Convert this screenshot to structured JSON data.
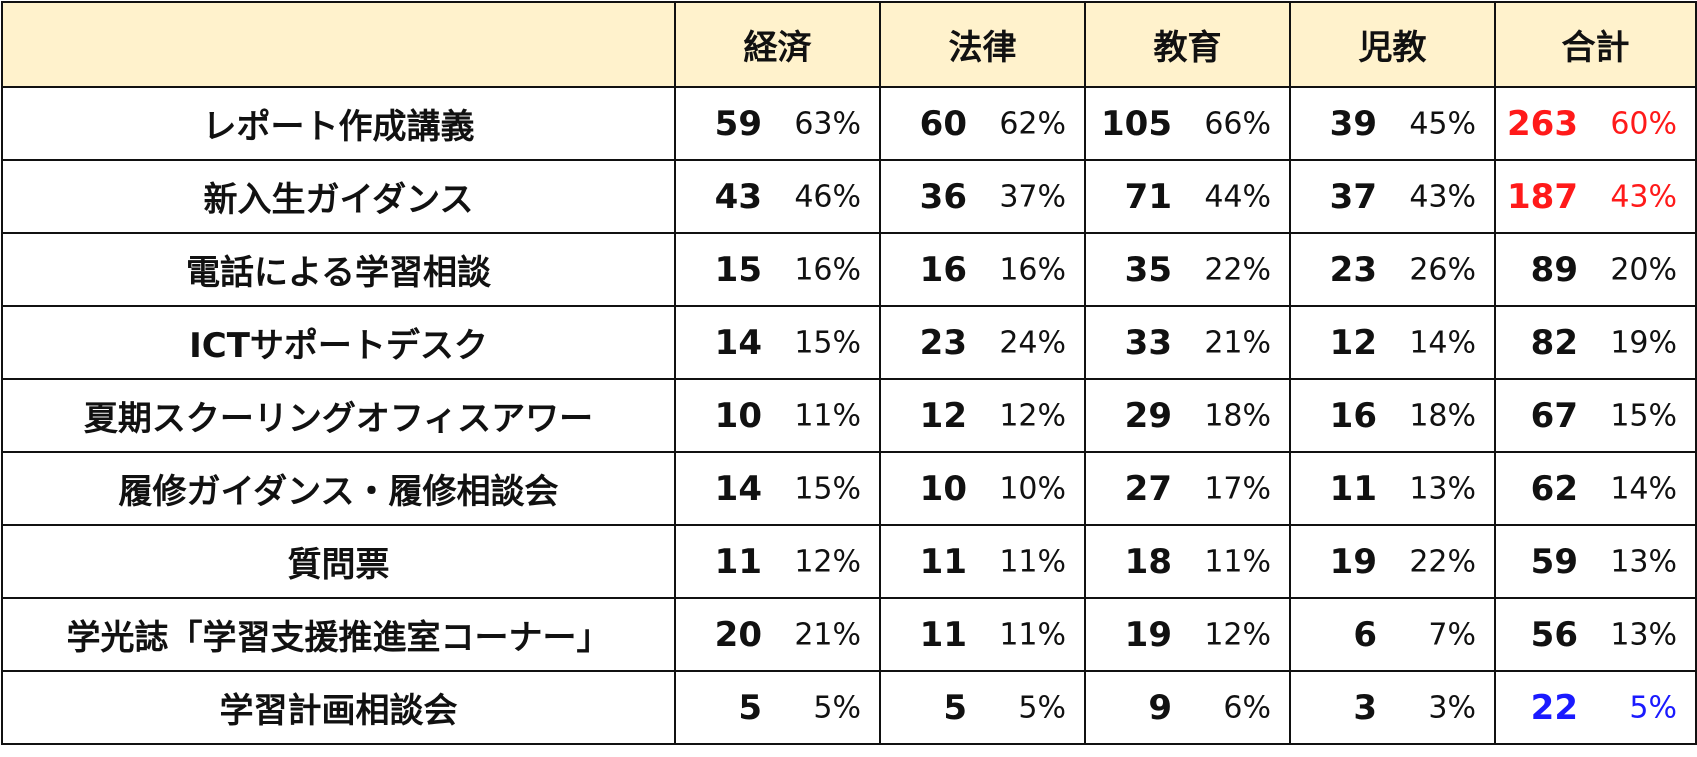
{
  "chart_data": {
    "type": "table",
    "corner": "",
    "columns": [
      "経済",
      "法律",
      "教育",
      "児教",
      "合計"
    ],
    "rows": [
      {
        "label": "レポート作成講義",
        "cells": [
          {
            "count": "59",
            "pct": "63%"
          },
          {
            "count": "60",
            "pct": "62%"
          },
          {
            "count": "105",
            "pct": "66%"
          },
          {
            "count": "39",
            "pct": "45%"
          },
          {
            "count": "263",
            "pct": "60%",
            "color": "#ff1a1a"
          }
        ]
      },
      {
        "label": "新入生ガイダンス",
        "cells": [
          {
            "count": "43",
            "pct": "46%"
          },
          {
            "count": "36",
            "pct": "37%"
          },
          {
            "count": "71",
            "pct": "44%"
          },
          {
            "count": "37",
            "pct": "43%"
          },
          {
            "count": "187",
            "pct": "43%",
            "color": "#ff1a1a"
          }
        ]
      },
      {
        "label": "電話による学習相談",
        "cells": [
          {
            "count": "15",
            "pct": "16%"
          },
          {
            "count": "16",
            "pct": "16%"
          },
          {
            "count": "35",
            "pct": "22%"
          },
          {
            "count": "23",
            "pct": "26%"
          },
          {
            "count": "89",
            "pct": "20%"
          }
        ]
      },
      {
        "label": "ICTサポートデスク",
        "cells": [
          {
            "count": "14",
            "pct": "15%"
          },
          {
            "count": "23",
            "pct": "24%"
          },
          {
            "count": "33",
            "pct": "21%"
          },
          {
            "count": "12",
            "pct": "14%"
          },
          {
            "count": "82",
            "pct": "19%"
          }
        ]
      },
      {
        "label": "夏期スクーリングオフィスアワー",
        "cells": [
          {
            "count": "10",
            "pct": "11%"
          },
          {
            "count": "12",
            "pct": "12%"
          },
          {
            "count": "29",
            "pct": "18%"
          },
          {
            "count": "16",
            "pct": "18%"
          },
          {
            "count": "67",
            "pct": "15%"
          }
        ]
      },
      {
        "label": "履修ガイダンス・履修相談会",
        "cells": [
          {
            "count": "14",
            "pct": "15%"
          },
          {
            "count": "10",
            "pct": "10%"
          },
          {
            "count": "27",
            "pct": "17%"
          },
          {
            "count": "11",
            "pct": "13%"
          },
          {
            "count": "62",
            "pct": "14%"
          }
        ]
      },
      {
        "label": "質問票",
        "cells": [
          {
            "count": "11",
            "pct": "12%"
          },
          {
            "count": "11",
            "pct": "11%"
          },
          {
            "count": "18",
            "pct": "11%"
          },
          {
            "count": "19",
            "pct": "22%"
          },
          {
            "count": "59",
            "pct": "13%"
          }
        ]
      },
      {
        "label": "学光誌「学習支援推進室コーナー」",
        "cells": [
          {
            "count": "20",
            "pct": "21%"
          },
          {
            "count": "11",
            "pct": "11%"
          },
          {
            "count": "19",
            "pct": "12%"
          },
          {
            "count": "6",
            "pct": "7%"
          },
          {
            "count": "56",
            "pct": "13%"
          }
        ]
      },
      {
        "label": "学習計画相談会",
        "cells": [
          {
            "count": "5",
            "pct": "5%"
          },
          {
            "count": "5",
            "pct": "5%"
          },
          {
            "count": "9",
            "pct": "6%"
          },
          {
            "count": "3",
            "pct": "3%"
          },
          {
            "count": "22",
            "pct": "5%",
            "color": "#1a1aff"
          }
        ]
      }
    ],
    "colors": {
      "header_bg": "#fff2cc",
      "highlight_high": "#ff1a1a",
      "highlight_low": "#1a1aff",
      "text": "#111111"
    }
  }
}
